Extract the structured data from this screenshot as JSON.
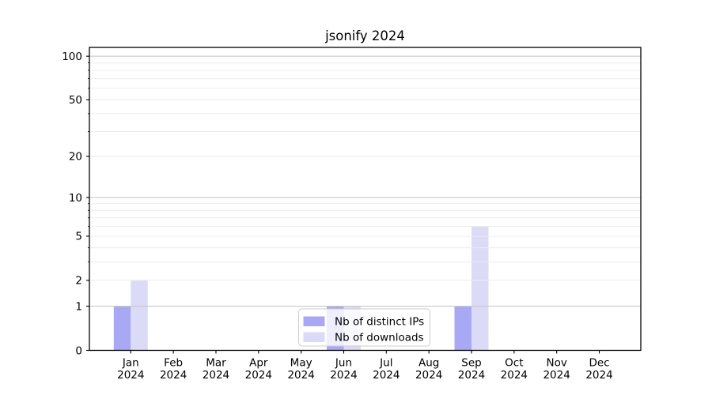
{
  "title": "jsonify 2024",
  "chart_data": {
    "type": "bar",
    "title": "jsonify 2024",
    "categories": [
      "Jan 2024",
      "Feb 2024",
      "Mar 2024",
      "Apr 2024",
      "May 2024",
      "Jun 2024",
      "Jul 2024",
      "Aug 2024",
      "Sep 2024",
      "Oct 2024",
      "Nov 2024",
      "Dec 2024"
    ],
    "series": [
      {
        "name": "Nb of distinct IPs",
        "color": "#a8a8f5",
        "values": [
          1,
          0,
          0,
          0,
          0,
          1,
          0,
          0,
          1,
          0,
          0,
          0
        ]
      },
      {
        "name": "Nb of downloads",
        "color": "#dbdbf8",
        "values": [
          2,
          0,
          0,
          0,
          0,
          1,
          0,
          0,
          6,
          0,
          0,
          0
        ]
      }
    ],
    "yscale": "log1p",
    "ylim": [
      0,
      115
    ],
    "y_tick_labels": [
      0,
      1,
      2,
      5,
      10,
      20,
      50,
      100
    ],
    "decade_gridlines": [
      1,
      10,
      100
    ],
    "minor_gridlines": [
      2,
      3,
      4,
      5,
      6,
      7,
      8,
      9,
      20,
      30,
      40,
      50,
      60,
      70,
      80,
      90
    ],
    "grid": true,
    "legend": {
      "position": "lower center"
    },
    "colors": {
      "spine": "#000000",
      "grid_major": "#c2c2c2",
      "grid_minor": "#ececec",
      "text": "#000000",
      "legend_border": "#cccccc",
      "legend_bg_alpha": 0.8
    }
  }
}
